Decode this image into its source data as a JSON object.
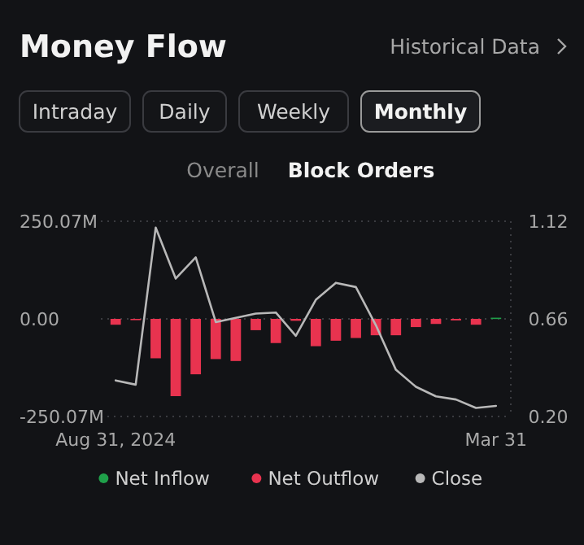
{
  "chart_data": {
    "type": "bar",
    "title": "Money Flow",
    "annotations": [
      "Historical Data",
      "Intraday",
      "Daily",
      "Weekly",
      "Monthly",
      "Overall",
      "Block Orders"
    ],
    "categories": [
      "Aug 31, 2024",
      null,
      null,
      null,
      null,
      null,
      null,
      null,
      null,
      null,
      null,
      null,
      null,
      null,
      null,
      null,
      null,
      null,
      null,
      "Mar 31"
    ],
    "series": [
      {
        "name": "Net Inflow",
        "color": "#1fa04a",
        "values": [
          null,
          null,
          null,
          null,
          null,
          null,
          null,
          null,
          null,
          null,
          null,
          null,
          null,
          null,
          null,
          null,
          null,
          null,
          null,
          3
        ]
      },
      {
        "name": "Net Outflow",
        "color": "#e8334f",
        "values": [
          -15,
          -3,
          -101,
          -198,
          -142,
          -103,
          -108,
          -29,
          -62,
          -5,
          -70,
          -56,
          -49,
          -42,
          -42,
          -21,
          -13,
          -4,
          -15,
          null
        ]
      },
      {
        "name": "Close",
        "type": "line",
        "axis": "y2",
        "color": "#b8b8b8",
        "values": [
          0.37,
          0.35,
          1.09,
          0.85,
          0.95,
          0.645,
          0.665,
          0.685,
          0.69,
          0.58,
          0.75,
          0.83,
          0.81,
          0.63,
          0.42,
          0.34,
          0.295,
          0.28,
          0.24,
          0.25
        ]
      }
    ],
    "ylim": [
      -250.07,
      250.07
    ],
    "yticks": [
      {
        "value": 250.07,
        "label": "250.07M"
      },
      {
        "value": 0,
        "label": "0.00"
      },
      {
        "value": -250.07,
        "label": "-250.07M"
      }
    ],
    "y2lim": [
      0.2,
      1.12
    ],
    "y2ticks": [
      {
        "value": 1.12,
        "label": "1.12"
      },
      {
        "value": 0.66,
        "label": "0.66"
      },
      {
        "value": 0.2,
        "label": "0.20"
      }
    ],
    "grid": "y",
    "legend": "bottom"
  }
}
